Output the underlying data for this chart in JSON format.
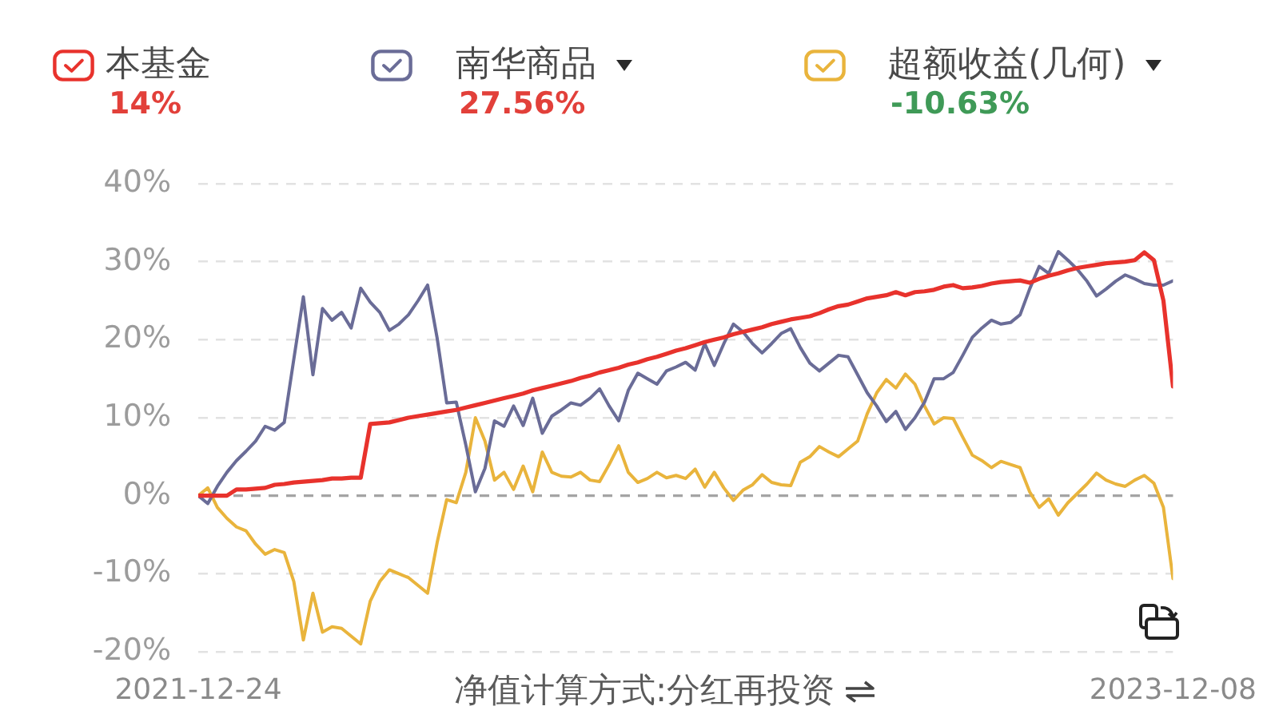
{
  "chart_data": {
    "type": "line",
    "x": [
      "2021-12-24",
      "2021-12-31",
      "2022-01-07",
      "2022-01-14",
      "2022-01-21",
      "2022-01-28",
      "2022-02-04",
      "2022-02-11",
      "2022-02-18",
      "2022-02-25",
      "2022-03-04",
      "2022-03-11",
      "2022-03-18",
      "2022-03-25",
      "2022-04-01",
      "2022-04-08",
      "2022-04-15",
      "2022-04-22",
      "2022-04-29",
      "2022-05-06",
      "2022-05-13",
      "2022-05-20",
      "2022-05-27",
      "2022-06-03",
      "2022-06-10",
      "2022-06-17",
      "2022-06-24",
      "2022-07-01",
      "2022-07-08",
      "2022-07-15",
      "2022-07-22",
      "2022-07-29",
      "2022-08-05",
      "2022-08-12",
      "2022-08-19",
      "2022-08-26",
      "2022-09-02",
      "2022-09-09",
      "2022-09-16",
      "2022-09-23",
      "2022-09-30",
      "2022-10-07",
      "2022-10-14",
      "2022-10-21",
      "2022-10-28",
      "2022-11-04",
      "2022-11-11",
      "2022-11-18",
      "2022-11-25",
      "2022-12-02",
      "2022-12-09",
      "2022-12-16",
      "2022-12-23",
      "2022-12-30",
      "2023-01-06",
      "2023-01-13",
      "2023-01-20",
      "2023-01-27",
      "2023-02-03",
      "2023-02-10",
      "2023-02-17",
      "2023-02-24",
      "2023-03-03",
      "2023-03-10",
      "2023-03-17",
      "2023-03-24",
      "2023-03-31",
      "2023-04-07",
      "2023-04-14",
      "2023-04-21",
      "2023-04-28",
      "2023-05-05",
      "2023-05-12",
      "2023-05-19",
      "2023-05-26",
      "2023-06-02",
      "2023-06-09",
      "2023-06-16",
      "2023-06-23",
      "2023-06-30",
      "2023-07-07",
      "2023-07-14",
      "2023-07-21",
      "2023-07-28",
      "2023-08-04",
      "2023-08-11",
      "2023-08-18",
      "2023-08-25",
      "2023-09-01",
      "2023-09-08",
      "2023-09-15",
      "2023-09-22",
      "2023-09-29",
      "2023-10-06",
      "2023-10-13",
      "2023-10-20",
      "2023-10-27",
      "2023-11-03",
      "2023-11-10",
      "2023-11-17",
      "2023-11-24",
      "2023-12-01",
      "2023-12-08"
    ],
    "xlim": [
      "2021-12-24",
      "2023-12-08"
    ],
    "xticks": [
      "2021-12-24",
      "2023-12-08"
    ],
    "ylim": [
      -20,
      40
    ],
    "yticks": [
      {
        "value": -20,
        "label": "-20%"
      },
      {
        "value": -10,
        "label": "-10%"
      },
      {
        "value": 0,
        "label": "0%"
      },
      {
        "value": 10,
        "label": "10%"
      },
      {
        "value": 20,
        "label": "20%"
      },
      {
        "value": 30,
        "label": "30%"
      },
      {
        "value": 40,
        "label": "40%"
      }
    ],
    "series": [
      {
        "name": "本基金",
        "color": "#e8322c",
        "values": [
          0,
          0,
          0,
          0,
          0.8,
          0.8,
          0.9,
          1.0,
          1.4,
          1.5,
          1.7,
          1.8,
          1.9,
          2.0,
          2.2,
          2.2,
          2.3,
          2.3,
          9.2,
          9.3,
          9.4,
          9.7,
          10.0,
          10.2,
          10.4,
          10.6,
          10.8,
          11.0,
          11.3,
          11.6,
          11.9,
          12.2,
          12.5,
          12.8,
          13.1,
          13.5,
          13.8,
          14.1,
          14.4,
          14.7,
          15.1,
          15.4,
          15.8,
          16.1,
          16.4,
          16.8,
          17.1,
          17.5,
          17.8,
          18.2,
          18.6,
          18.9,
          19.3,
          19.7,
          20.0,
          20.3,
          20.7,
          21.0,
          21.3,
          21.6,
          22.0,
          22.3,
          22.6,
          22.8,
          23.0,
          23.4,
          23.9,
          24.3,
          24.5,
          24.9,
          25.3,
          25.5,
          25.7,
          26.1,
          25.7,
          26.1,
          26.2,
          26.4,
          26.8,
          27.0,
          26.6,
          26.7,
          26.9,
          27.2,
          27.4,
          27.5,
          27.6,
          27.3,
          27.8,
          28.2,
          28.5,
          28.9,
          29.2,
          29.4,
          29.6,
          29.8,
          29.9,
          30.0,
          30.2,
          31.2,
          30.2,
          25.0,
          14
        ]
      },
      {
        "name": "南华商品",
        "color": "#6a6c97",
        "values": [
          0,
          -1.0,
          1.2,
          3.0,
          4.5,
          5.7,
          7.0,
          8.9,
          8.4,
          9.4,
          17.5,
          25.5,
          15.5,
          24.0,
          22.5,
          23.5,
          21.5,
          26.6,
          24.8,
          23.5,
          21.2,
          22.0,
          23.2,
          25.0,
          27.0,
          20.2,
          11.9,
          12.0,
          6.5,
          0.5,
          3.5,
          9.6,
          8.9,
          11.5,
          9.0,
          12.5,
          8.0,
          10.2,
          11.0,
          11.9,
          11.6,
          12.5,
          13.7,
          11.5,
          9.6,
          13.5,
          15.7,
          15.0,
          14.3,
          16.0,
          16.5,
          17.1,
          16.1,
          19.5,
          16.7,
          19.5,
          22.0,
          21.0,
          19.5,
          18.3,
          19.5,
          20.8,
          21.4,
          19.0,
          17.0,
          16.0,
          17.0,
          18.0,
          17.8,
          15.5,
          13.2,
          11.5,
          9.5,
          10.8,
          8.5,
          10.0,
          12.0,
          15.0,
          15.0,
          15.8,
          18.0,
          20.3,
          21.5,
          22.5,
          22.0,
          22.2,
          23.2,
          26.5,
          29.4,
          28.5,
          31.3,
          30.2,
          29.0,
          27.5,
          25.6,
          26.5,
          27.5,
          28.3,
          27.8,
          27.2,
          27.0,
          27.0,
          27.56
        ]
      },
      {
        "name": "超额收益(几何)",
        "color": "#e9b43c",
        "values": [
          0,
          1.0,
          -1.5,
          -2.9,
          -4.0,
          -4.5,
          -6.2,
          -7.5,
          -6.9,
          -7.3,
          -11.0,
          -18.5,
          -12.5,
          -17.5,
          -16.8,
          -17.0,
          -18.0,
          -19.0,
          -13.5,
          -11.0,
          -9.5,
          -10.0,
          -10.5,
          -11.5,
          -12.5,
          -6.0,
          -0.5,
          -0.9,
          3.0,
          10.0,
          7.0,
          2.0,
          3.0,
          0.8,
          3.8,
          0.5,
          5.6,
          3.0,
          2.5,
          2.4,
          3.0,
          2.0,
          1.8,
          4.0,
          6.4,
          3.0,
          1.7,
          2.2,
          3.0,
          2.3,
          2.6,
          2.2,
          3.4,
          1.1,
          3.0,
          1.0,
          -0.6,
          0.7,
          1.4,
          2.7,
          1.7,
          1.4,
          1.3,
          4.3,
          5.0,
          6.3,
          5.6,
          5.0,
          6.0,
          7.0,
          10.5,
          13.2,
          14.9,
          13.8,
          15.6,
          14.3,
          11.5,
          9.2,
          10.0,
          9.9,
          7.5,
          5.2,
          4.5,
          3.6,
          4.4,
          4.0,
          3.6,
          0.5,
          -1.5,
          -0.4,
          -2.5,
          -0.9,
          0.3,
          1.5,
          2.9,
          2.0,
          1.5,
          1.2,
          2.0,
          2.6,
          1.6,
          -1.5,
          -10.63
        ]
      }
    ],
    "grid": "y",
    "legend": "top",
    "marker": "none",
    "line_style": "solid",
    "ref_lines": [
      {
        "axis": "y",
        "value": 0,
        "color": "#a4a4a4",
        "line_style": "dashed"
      }
    ],
    "annotations": [
      "14%",
      "27.56%",
      "-10.63%",
      "净值计算方式:分红再投资"
    ]
  }
}
